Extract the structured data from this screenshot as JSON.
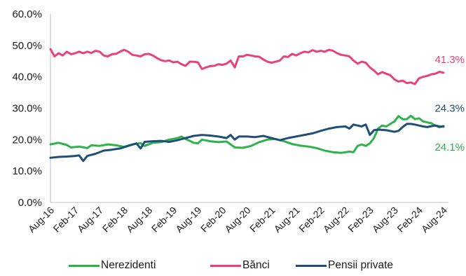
{
  "chart_data": {
    "type": "line",
    "y_tick_labels": [
      "0.0%",
      "10.0%",
      "20.0%",
      "30.0%",
      "40.0%",
      "50.0%",
      "60.0%"
    ],
    "ylim": [
      0,
      60
    ],
    "x_tick_labels": [
      "Aug-16",
      "Feb-17",
      "Aug-17",
      "Feb-18",
      "Aug-18",
      "Feb-19",
      "Aug-19",
      "Feb-20",
      "Aug-20",
      "Feb-21",
      "Aug-21",
      "Feb-22",
      "Aug-22",
      "Feb-23",
      "Aug-23",
      "Feb-24",
      "Aug-24"
    ],
    "x_start": "2016-08",
    "x_end": "2024-08",
    "grid": false,
    "legend_position": "bottom",
    "series": [
      {
        "name": "Nerezidenti",
        "color": "#2db34a",
        "end_label": "24.1%",
        "values": [
          [
            "2016-08",
            18.5
          ],
          [
            "2016-10",
            19.0
          ],
          [
            "2016-12",
            18.3
          ],
          [
            "2017-01",
            17.5
          ],
          [
            "2017-03",
            17.8
          ],
          [
            "2017-05",
            17.3
          ],
          [
            "2017-06",
            18.2
          ],
          [
            "2017-08",
            18.0
          ],
          [
            "2017-10",
            18.5
          ],
          [
            "2017-12",
            18.2
          ],
          [
            "2018-02",
            17.7
          ],
          [
            "2018-04",
            18.5
          ],
          [
            "2018-06",
            18.9
          ],
          [
            "2018-07",
            18.0
          ],
          [
            "2018-09",
            19.0
          ],
          [
            "2018-11",
            19.2
          ],
          [
            "2019-01",
            20.0
          ],
          [
            "2019-03",
            20.5
          ],
          [
            "2019-04",
            21.0
          ],
          [
            "2019-05",
            20.2
          ],
          [
            "2019-07",
            19.0
          ],
          [
            "2019-08",
            18.8
          ],
          [
            "2019-09",
            20.0
          ],
          [
            "2019-11",
            19.5
          ],
          [
            "2020-01",
            19.2
          ],
          [
            "2020-03",
            19.4
          ],
          [
            "2020-04",
            18.5
          ],
          [
            "2020-05",
            17.5
          ],
          [
            "2020-07",
            17.4
          ],
          [
            "2020-09",
            18.0
          ],
          [
            "2020-11",
            19.2
          ],
          [
            "2021-01",
            20.0
          ],
          [
            "2021-03",
            20.2
          ],
          [
            "2021-05",
            19.5
          ],
          [
            "2021-07",
            18.6
          ],
          [
            "2021-09",
            18.1
          ],
          [
            "2021-11",
            17.8
          ],
          [
            "2022-01",
            17.3
          ],
          [
            "2022-03",
            16.5
          ],
          [
            "2022-05",
            16.0
          ],
          [
            "2022-07",
            15.8
          ],
          [
            "2022-09",
            16.2
          ],
          [
            "2022-10",
            16.0
          ],
          [
            "2022-11",
            18.0
          ],
          [
            "2022-12",
            18.5
          ],
          [
            "2023-01",
            18.0
          ],
          [
            "2023-02",
            18.8
          ],
          [
            "2023-03",
            20.5
          ],
          [
            "2023-04",
            23.5
          ],
          [
            "2023-05",
            24.5
          ],
          [
            "2023-06",
            24.2
          ],
          [
            "2023-07",
            25.0
          ],
          [
            "2023-08",
            25.8
          ],
          [
            "2023-09",
            27.5
          ],
          [
            "2023-10",
            26.5
          ],
          [
            "2023-11",
            26.5
          ],
          [
            "2023-12",
            27.6
          ],
          [
            "2024-01",
            26.5
          ],
          [
            "2024-02",
            26.8
          ],
          [
            "2024-03",
            25.8
          ],
          [
            "2024-04",
            25.5
          ],
          [
            "2024-05",
            25.2
          ],
          [
            "2024-06",
            24.5
          ],
          [
            "2024-07",
            24.3
          ],
          [
            "2024-08",
            24.1
          ]
        ]
      },
      {
        "name": "Bănci",
        "color": "#e8417d",
        "end_label": "41.3%",
        "values": [
          [
            "2016-08",
            48.8
          ],
          [
            "2016-09",
            46.5
          ],
          [
            "2016-10",
            47.5
          ],
          [
            "2016-11",
            46.8
          ],
          [
            "2016-12",
            48.0
          ],
          [
            "2017-01",
            47.2
          ],
          [
            "2017-02",
            47.5
          ],
          [
            "2017-03",
            48.0
          ],
          [
            "2017-04",
            47.5
          ],
          [
            "2017-05",
            48.0
          ],
          [
            "2017-06",
            47.6
          ],
          [
            "2017-07",
            48.3
          ],
          [
            "2017-08",
            48.0
          ],
          [
            "2017-09",
            46.8
          ],
          [
            "2017-10",
            46.5
          ],
          [
            "2017-11",
            47.2
          ],
          [
            "2017-12",
            47.3
          ],
          [
            "2018-01",
            48.0
          ],
          [
            "2018-02",
            48.6
          ],
          [
            "2018-03",
            48.0
          ],
          [
            "2018-04",
            47.0
          ],
          [
            "2018-05",
            46.8
          ],
          [
            "2018-06",
            46.5
          ],
          [
            "2018-07",
            47.2
          ],
          [
            "2018-08",
            47.3
          ],
          [
            "2018-09",
            46.8
          ],
          [
            "2018-10",
            46.0
          ],
          [
            "2018-11",
            45.3
          ],
          [
            "2018-12",
            45.0
          ],
          [
            "2019-01",
            45.2
          ],
          [
            "2019-02",
            44.6
          ],
          [
            "2019-03",
            44.8
          ],
          [
            "2019-04",
            44.0
          ],
          [
            "2019-05",
            43.5
          ],
          [
            "2019-06",
            44.8
          ],
          [
            "2019-07",
            44.8
          ],
          [
            "2019-08",
            44.6
          ],
          [
            "2019-09",
            42.5
          ],
          [
            "2019-10",
            43.0
          ],
          [
            "2019-11",
            43.4
          ],
          [
            "2019-12",
            43.5
          ],
          [
            "2020-01",
            44.0
          ],
          [
            "2020-02",
            43.8
          ],
          [
            "2020-03",
            44.2
          ],
          [
            "2020-04",
            45.2
          ],
          [
            "2020-05",
            43.0
          ],
          [
            "2020-06",
            46.5
          ],
          [
            "2020-07",
            46.5
          ],
          [
            "2020-08",
            47.0
          ],
          [
            "2020-09",
            46.8
          ],
          [
            "2020-10",
            46.5
          ],
          [
            "2020-11",
            46.4
          ],
          [
            "2020-12",
            45.5
          ],
          [
            "2021-01",
            44.8
          ],
          [
            "2021-02",
            44.5
          ],
          [
            "2021-03",
            44.8
          ],
          [
            "2021-04",
            45.2
          ],
          [
            "2021-05",
            46.5
          ],
          [
            "2021-06",
            46.3
          ],
          [
            "2021-07",
            47.3
          ],
          [
            "2021-08",
            46.8
          ],
          [
            "2021-09",
            47.5
          ],
          [
            "2021-10",
            48.0
          ],
          [
            "2021-11",
            47.8
          ],
          [
            "2021-12",
            48.5
          ],
          [
            "2022-01",
            48.0
          ],
          [
            "2022-02",
            48.3
          ],
          [
            "2022-03",
            48.0
          ],
          [
            "2022-04",
            48.6
          ],
          [
            "2022-05",
            48.3
          ],
          [
            "2022-06",
            47.5
          ],
          [
            "2022-07",
            47.0
          ],
          [
            "2022-08",
            46.8
          ],
          [
            "2022-09",
            46.5
          ],
          [
            "2022-10",
            45.2
          ],
          [
            "2022-11",
            44.2
          ],
          [
            "2022-12",
            44.8
          ],
          [
            "2023-01",
            44.5
          ],
          [
            "2023-02",
            43.0
          ],
          [
            "2023-03",
            42.0
          ],
          [
            "2023-04",
            40.8
          ],
          [
            "2023-05",
            41.5
          ],
          [
            "2023-06",
            41.0
          ],
          [
            "2023-07",
            40.5
          ],
          [
            "2023-08",
            39.2
          ],
          [
            "2023-09",
            38.5
          ],
          [
            "2023-10",
            38.8
          ],
          [
            "2023-11",
            38.0
          ],
          [
            "2023-12",
            38.2
          ],
          [
            "2024-01",
            37.7
          ],
          [
            "2024-02",
            39.5
          ],
          [
            "2024-03",
            40.0
          ],
          [
            "2024-04",
            40.3
          ],
          [
            "2024-05",
            40.8
          ],
          [
            "2024-06",
            41.0
          ],
          [
            "2024-07",
            41.6
          ],
          [
            "2024-08",
            41.3
          ]
        ]
      },
      {
        "name": "Pensii private",
        "color": "#1f4e79",
        "end_label": "24.3%",
        "values": [
          [
            "2016-08",
            14.2
          ],
          [
            "2016-10",
            14.5
          ],
          [
            "2016-12",
            14.6
          ],
          [
            "2017-02",
            14.8
          ],
          [
            "2017-03",
            15.0
          ],
          [
            "2017-04",
            13.2
          ],
          [
            "2017-05",
            14.8
          ],
          [
            "2017-07",
            15.5
          ],
          [
            "2017-09",
            16.5
          ],
          [
            "2017-11",
            16.8
          ],
          [
            "2018-01",
            17.2
          ],
          [
            "2018-03",
            18.0
          ],
          [
            "2018-05",
            18.8
          ],
          [
            "2018-06",
            17.2
          ],
          [
            "2018-07",
            19.3
          ],
          [
            "2018-09",
            19.5
          ],
          [
            "2018-11",
            19.6
          ],
          [
            "2019-01",
            19.3
          ],
          [
            "2019-03",
            19.8
          ],
          [
            "2019-05",
            20.5
          ],
          [
            "2019-07",
            21.2
          ],
          [
            "2019-09",
            21.5
          ],
          [
            "2019-11",
            21.3
          ],
          [
            "2020-01",
            21.0
          ],
          [
            "2020-03",
            20.5
          ],
          [
            "2020-04",
            21.5
          ],
          [
            "2020-05",
            20.0
          ],
          [
            "2020-06",
            21.0
          ],
          [
            "2020-08",
            21.0
          ],
          [
            "2020-10",
            20.8
          ],
          [
            "2020-12",
            21.2
          ],
          [
            "2021-02",
            20.5
          ],
          [
            "2021-04",
            19.8
          ],
          [
            "2021-06",
            20.5
          ],
          [
            "2021-08",
            21.0
          ],
          [
            "2021-10",
            21.5
          ],
          [
            "2021-12",
            22.0
          ],
          [
            "2022-02",
            22.8
          ],
          [
            "2022-04",
            23.5
          ],
          [
            "2022-06",
            24.0
          ],
          [
            "2022-08",
            24.2
          ],
          [
            "2022-09",
            23.5
          ],
          [
            "2022-10",
            24.8
          ],
          [
            "2022-11",
            24.5
          ],
          [
            "2022-12",
            24.2
          ],
          [
            "2023-01",
            24.8
          ],
          [
            "2023-02",
            21.5
          ],
          [
            "2023-03",
            23.0
          ],
          [
            "2023-04",
            23.2
          ],
          [
            "2023-06",
            23.0
          ],
          [
            "2023-08",
            22.5
          ],
          [
            "2023-09",
            22.8
          ],
          [
            "2023-10",
            24.0
          ],
          [
            "2023-11",
            25.0
          ],
          [
            "2023-12",
            25.0
          ],
          [
            "2024-01",
            24.8
          ],
          [
            "2024-02",
            24.5
          ],
          [
            "2024-03",
            24.2
          ],
          [
            "2024-04",
            24.0
          ],
          [
            "2024-05",
            24.3
          ],
          [
            "2024-06",
            24.5
          ],
          [
            "2024-07",
            24.0
          ],
          [
            "2024-08",
            24.3
          ]
        ]
      }
    ]
  }
}
